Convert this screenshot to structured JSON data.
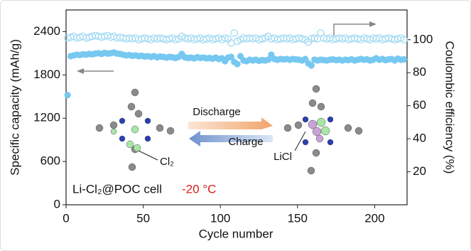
{
  "chart_data": {
    "type": "scatter",
    "xlabel": "Cycle number",
    "ylabel": "Specific capacity (mAh/g)",
    "y2label": "Coulombic efficiency (%)",
    "xlim": [
      0,
      221
    ],
    "xticks": [
      0,
      50,
      100,
      150,
      200
    ],
    "ylim": [
      0,
      2700
    ],
    "yticks": [
      0,
      600,
      1200,
      1800,
      2400
    ],
    "y2lim": [
      0,
      118
    ],
    "y2ticks": [
      20,
      40,
      60,
      80,
      100
    ],
    "annotations": {
      "discharge": "Discharge",
      "charge": "Charge",
      "cl2": "Cl₂",
      "licl": "LiCl",
      "cell": "Li-Cl₂@POC cell",
      "temperature": "-20 °C"
    },
    "x": [
      1,
      3,
      5,
      7,
      9,
      11,
      13,
      15,
      17,
      19,
      21,
      23,
      25,
      27,
      29,
      31,
      33,
      35,
      37,
      39,
      41,
      43,
      45,
      47,
      49,
      51,
      53,
      55,
      57,
      59,
      61,
      63,
      65,
      67,
      69,
      71,
      73,
      75,
      77,
      79,
      81,
      83,
      85,
      87,
      89,
      91,
      93,
      95,
      97,
      99,
      101,
      103,
      105,
      107,
      109,
      111,
      113,
      115,
      117,
      119,
      121,
      123,
      125,
      127,
      129,
      131,
      133,
      135,
      137,
      139,
      141,
      143,
      145,
      147,
      149,
      151,
      153,
      155,
      157,
      159,
      161,
      163,
      165,
      167,
      169,
      171,
      173,
      175,
      177,
      179,
      181,
      183,
      185,
      187,
      189,
      191,
      193,
      195,
      197,
      199,
      201,
      203,
      205,
      207,
      209,
      211,
      213,
      215,
      217,
      219
    ],
    "series": [
      {
        "color": "#76c8f0",
        "values": [
          1520,
          2060,
          2070,
          2080,
          2075,
          2085,
          2080,
          2090,
          2085,
          2095,
          2100,
          2090,
          2105,
          2095,
          2100,
          2110,
          2095,
          2090,
          2080,
          2070,
          2075,
          2065,
          2070,
          2060,
          2065,
          2055,
          2060,
          2050,
          2060,
          2045,
          2055,
          2050,
          2040,
          2050,
          2045,
          2035,
          2050,
          2090,
          2045,
          2035,
          2040,
          2030,
          2045,
          2035,
          2040,
          2030,
          2035,
          2025,
          2040,
          2020,
          2030,
          1990,
          2040,
          2050,
          1980,
          1950,
          2060,
          2000,
          1990,
          2010,
          2000,
          2010,
          1995,
          2005,
          2000,
          2010,
          2080,
          2020,
          2010,
          2020,
          2015,
          2020,
          2010,
          2020,
          2015,
          2010,
          2000,
          2020,
          1960,
          1930,
          2010,
          2000,
          2010,
          2005,
          2000,
          2010,
          2015,
          2005,
          2010,
          2000,
          2010,
          2005,
          2015,
          2000,
          2010,
          2020,
          2010,
          2015,
          2000,
          2010,
          2030,
          2010,
          2020,
          2005,
          2015,
          2020,
          2000,
          2025,
          2010,
          2015
        ]
      },
      {
        "color": "#a3daf3",
        "axis": "y2",
        "values": [
          101,
          101.5,
          102,
          101,
          101.5,
          102,
          101,
          101.5,
          102,
          102.5,
          102,
          101.5,
          102,
          102.5,
          101.5,
          102,
          101,
          101.5,
          101,
          100.5,
          101,
          100.5,
          101,
          100,
          100.5,
          101,
          100.5,
          100,
          101,
          100.5,
          101,
          100.5,
          100,
          100.5,
          101,
          100,
          100.5,
          102,
          101,
          100.5,
          101,
          100,
          100.5,
          101,
          100,
          100.5,
          101,
          100,
          100.5,
          101,
          100,
          101,
          100.5,
          98,
          104,
          99,
          100,
          101,
          100.5,
          101,
          100.5,
          101,
          100,
          100.5,
          101,
          102,
          100.5,
          101,
          100,
          100.5,
          101,
          100.5,
          101,
          100,
          100.5,
          101,
          100.5,
          100,
          98.5,
          100.5,
          101,
          100.5,
          104,
          101,
          100.5,
          101,
          100,
          100.5,
          101,
          100.5,
          101,
          100,
          100.5,
          101,
          100.5,
          100,
          101,
          100.5,
          100,
          101,
          100.5,
          101,
          100,
          100.5,
          101,
          100.5,
          100,
          100.5,
          101,
          100
        ]
      }
    ]
  }
}
